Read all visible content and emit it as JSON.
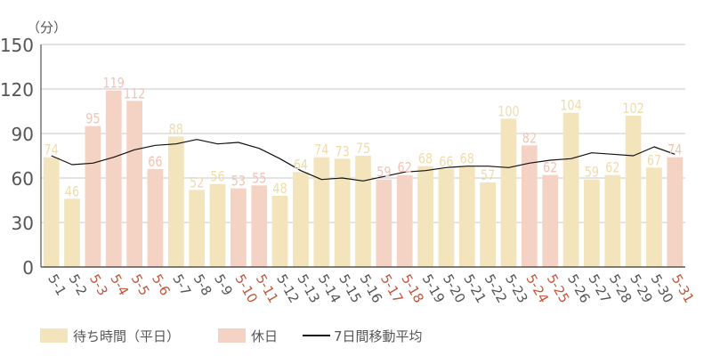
{
  "chart_data": {
    "type": "bar",
    "unit_label": "（分）",
    "categories": [
      "5-1",
      "5-2",
      "5-3",
      "5-4",
      "5-5",
      "5-6",
      "5-7",
      "5-8",
      "5-9",
      "5-10",
      "5-11",
      "5-12",
      "5-13",
      "5-14",
      "5-15",
      "5-16",
      "5-17",
      "5-18",
      "5-19",
      "5-20",
      "5-21",
      "5-22",
      "5-23",
      "5-24",
      "5-25",
      "5-26",
      "5-27",
      "5-28",
      "5-29",
      "5-30",
      "5-31"
    ],
    "values": [
      74,
      46,
      95,
      119,
      112,
      66,
      88,
      52,
      56,
      53,
      55,
      48,
      64,
      74,
      73,
      75,
      59,
      62,
      68,
      66,
      68,
      57,
      100,
      82,
      62,
      104,
      59,
      62,
      102,
      67,
      74
    ],
    "holiday": [
      false,
      false,
      true,
      true,
      true,
      true,
      false,
      false,
      false,
      true,
      true,
      false,
      false,
      false,
      false,
      false,
      true,
      true,
      false,
      false,
      false,
      false,
      false,
      true,
      true,
      false,
      false,
      false,
      false,
      false,
      true
    ],
    "series": [
      {
        "name": "待ち時間（平日）",
        "type": "bar",
        "color": "#f3e4bc"
      },
      {
        "name": "休日",
        "type": "bar",
        "color": "#f4d3c5"
      },
      {
        "name": "7日間移動平均",
        "type": "line",
        "color": "#111111",
        "values": [
          75,
          69,
          70,
          74,
          79,
          82,
          83,
          86,
          83,
          84,
          80,
          73,
          65,
          59,
          60,
          58,
          61,
          64,
          65,
          67,
          68,
          68,
          67,
          70,
          72,
          73,
          77,
          76,
          75,
          81,
          76
        ]
      }
    ],
    "yticks": [
      0,
      30,
      60,
      90,
      120,
      150
    ],
    "ylim": [
      0,
      150
    ],
    "grid": true,
    "legend_position": "bottom",
    "title": "",
    "xlabel": "",
    "ylabel": "（分）"
  },
  "colors": {
    "weekday": "#f3e4bc",
    "holiday": "#f4d3c5",
    "weekday_label": "#efdcaa",
    "holiday_label": "#f1c4b3",
    "holiday_tick": "#c0583e",
    "tick": "#555555",
    "grid": "#c8c8c8",
    "line": "#111111"
  },
  "legend": {
    "weekday": "待ち時間（平日）",
    "holiday": "休日",
    "moving_average": "7日間移動平均"
  }
}
